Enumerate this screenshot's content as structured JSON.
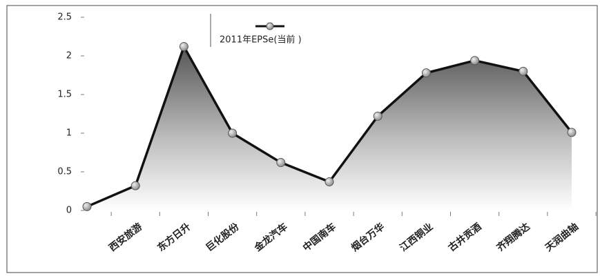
{
  "chart_data": {
    "type": "line",
    "categories": [
      null,
      "西安旅游",
      "东方日升",
      "巨化股份",
      "金龙汽车",
      "中国南车",
      "烟台万华",
      "江西铜业",
      "古井贡酒",
      "齐翔腾达",
      "天润曲轴"
    ],
    "series": [
      {
        "name": "2011年EPSe(当前 )",
        "color": "#111111",
        "values": [
          0.05,
          0.32,
          2.12,
          1.0,
          0.62,
          0.37,
          1.22,
          1.78,
          1.94,
          1.8,
          1.01
        ]
      }
    ],
    "ylim": [
      0,
      2.5
    ],
    "yticks": [
      0,
      0.5,
      1,
      1.5,
      2,
      2.5
    ],
    "fill_under": true
  }
}
